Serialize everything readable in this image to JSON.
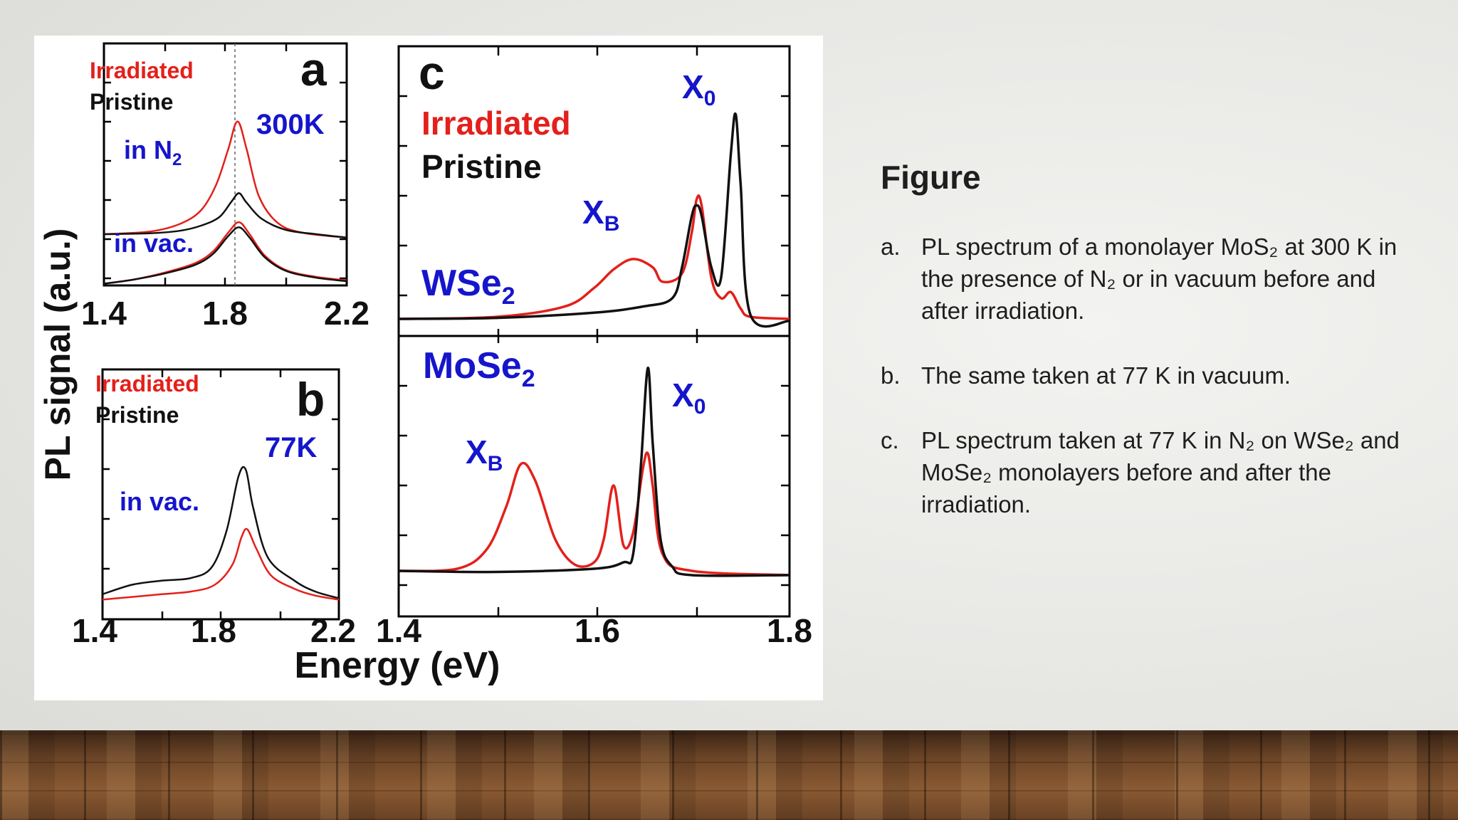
{
  "caption": {
    "title": "Figure",
    "items": [
      {
        "marker": "a.",
        "text": "PL spectrum of a monolayer MoS₂ at 300 K in the presence of N₂ or in vacuum before and after irradiation."
      },
      {
        "marker": "b.",
        "text": "The same taken at 77 K in vacuum."
      },
      {
        "marker": "c.",
        "text": "PL spectrum taken at 77 K in N₂ on WSe₂ and MoSe₂ monolayers before and after the irradiation."
      }
    ]
  },
  "figure": {
    "shared_ylabel": "PL signal (a.u.)",
    "shared_xlabel": "Energy (eV)"
  },
  "chart_data": [
    {
      "type": "line",
      "panel": "a",
      "annotations": [
        "300K",
        "in N2",
        "in vac."
      ],
      "legend": [
        "Irradiated",
        "Pristine"
      ],
      "xlim": [
        1.4,
        2.2
      ],
      "xticks": [
        "1.4",
        "1.8",
        "2.2"
      ],
      "series": [
        {
          "name": "Irradiated",
          "color": "#e3201b",
          "x": [
            1.4,
            1.55,
            1.65,
            1.72,
            1.77,
            1.81,
            1.84,
            1.87,
            1.91,
            1.97,
            2.05,
            2.2
          ],
          "y": [
            0.6,
            0.63,
            0.72,
            0.88,
            1.18,
            1.6,
            1.92,
            1.6,
            1.05,
            0.74,
            0.62,
            0.56
          ]
        },
        {
          "name": "Pristine",
          "color": "#111111",
          "x": [
            1.4,
            1.55,
            1.65,
            1.72,
            1.78,
            1.82,
            1.845,
            1.87,
            1.92,
            2.0,
            2.1,
            2.2
          ],
          "y": [
            0.6,
            0.61,
            0.64,
            0.7,
            0.8,
            0.98,
            1.08,
            0.97,
            0.78,
            0.65,
            0.6,
            0.56
          ]
        },
        {
          "name": "Irradiated",
          "color": "#e3201b",
          "x": [
            1.4,
            1.5,
            1.6,
            1.7,
            1.76,
            1.81,
            1.845,
            1.88,
            1.93,
            2.0,
            2.1,
            2.2
          ],
          "y": [
            0.02,
            0.07,
            0.15,
            0.26,
            0.4,
            0.62,
            0.74,
            0.6,
            0.35,
            0.18,
            0.1,
            0.06
          ]
        },
        {
          "name": "Pristine",
          "color": "#111111",
          "x": [
            1.4,
            1.5,
            1.6,
            1.7,
            1.76,
            1.81,
            1.845,
            1.88,
            1.93,
            2.0,
            2.1,
            2.2
          ],
          "y": [
            0.02,
            0.07,
            0.14,
            0.24,
            0.37,
            0.58,
            0.68,
            0.56,
            0.33,
            0.17,
            0.09,
            0.05
          ]
        }
      ]
    },
    {
      "type": "line",
      "panel": "b",
      "annotations": [
        "77K",
        "in vac."
      ],
      "legend": [
        "Irradiated",
        "Pristine"
      ],
      "xlim": [
        1.4,
        2.2
      ],
      "xticks": [
        "1.4",
        "1.8",
        "2.2"
      ],
      "series": [
        {
          "name": "Pristine",
          "color": "#111111",
          "x": [
            1.4,
            1.5,
            1.6,
            1.7,
            1.77,
            1.82,
            1.86,
            1.885,
            1.91,
            1.96,
            2.05,
            2.12,
            2.2
          ],
          "y": [
            0.08,
            0.15,
            0.18,
            0.2,
            0.28,
            0.55,
            0.95,
            1.0,
            0.72,
            0.35,
            0.18,
            0.1,
            0.05
          ]
        },
        {
          "name": "Irradiated",
          "color": "#e3201b",
          "x": [
            1.4,
            1.5,
            1.6,
            1.7,
            1.78,
            1.84,
            1.87,
            1.89,
            1.92,
            1.97,
            2.05,
            2.12,
            2.2
          ],
          "y": [
            0.04,
            0.06,
            0.08,
            0.1,
            0.15,
            0.3,
            0.5,
            0.56,
            0.42,
            0.22,
            0.12,
            0.07,
            0.04
          ]
        }
      ]
    },
    {
      "type": "line",
      "panel": "c",
      "annotations": [
        "WSe2",
        "XB",
        "X0"
      ],
      "legend": [
        "Irradiated",
        "Pristine"
      ],
      "xlim": [
        1.4,
        1.8
      ],
      "xticks": [
        "1.4",
        "1.6",
        "1.8"
      ],
      "series": [
        {
          "name": "Irradiated",
          "color": "#e3201b",
          "x": [
            1.4,
            1.5,
            1.57,
            1.6,
            1.62,
            1.64,
            1.66,
            1.67,
            1.69,
            1.7,
            1.705,
            1.71,
            1.72,
            1.73,
            1.74,
            1.75,
            1.76,
            1.8
          ],
          "y": [
            0.0,
            0.01,
            0.06,
            0.15,
            0.24,
            0.29,
            0.25,
            0.18,
            0.22,
            0.42,
            0.58,
            0.55,
            0.2,
            0.1,
            0.13,
            0.05,
            0.01,
            0.0
          ]
        },
        {
          "name": "Pristine",
          "color": "#111111",
          "x": [
            1.4,
            1.5,
            1.6,
            1.65,
            1.68,
            1.69,
            1.7,
            1.705,
            1.71,
            1.72,
            1.73,
            1.74,
            1.745,
            1.75,
            1.76,
            1.8
          ],
          "y": [
            0.0,
            0.005,
            0.03,
            0.06,
            0.1,
            0.25,
            0.5,
            0.55,
            0.5,
            0.25,
            0.2,
            0.8,
            0.99,
            0.65,
            0.02,
            -0.01
          ]
        }
      ]
    },
    {
      "type": "line",
      "panel": "c",
      "annotations": [
        "MoSe2",
        "XB",
        "X0"
      ],
      "legend": [
        "Irradiated",
        "Pristine"
      ],
      "xlim": [
        1.4,
        1.8
      ],
      "xticks": [
        "1.4",
        "1.6",
        "1.8"
      ],
      "series": [
        {
          "name": "Irradiated",
          "color": "#e3201b",
          "x": [
            1.4,
            1.46,
            1.49,
            1.51,
            1.525,
            1.54,
            1.56,
            1.58,
            1.6,
            1.61,
            1.62,
            1.63,
            1.64,
            1.65,
            1.655,
            1.66,
            1.67,
            1.7,
            1.8
          ],
          "y": [
            0.0,
            0.01,
            0.1,
            0.3,
            0.5,
            0.42,
            0.15,
            0.03,
            0.04,
            0.15,
            0.4,
            0.12,
            0.18,
            0.48,
            0.55,
            0.4,
            0.08,
            0.0,
            -0.02
          ]
        },
        {
          "name": "Pristine",
          "color": "#111111",
          "x": [
            1.4,
            1.5,
            1.6,
            1.63,
            1.64,
            1.648,
            1.655,
            1.66,
            1.668,
            1.68,
            1.7,
            1.8
          ],
          "y": [
            0.0,
            -0.005,
            0.01,
            0.04,
            0.08,
            0.5,
            0.95,
            0.6,
            0.15,
            0.02,
            -0.02,
            -0.02
          ]
        }
      ]
    }
  ]
}
